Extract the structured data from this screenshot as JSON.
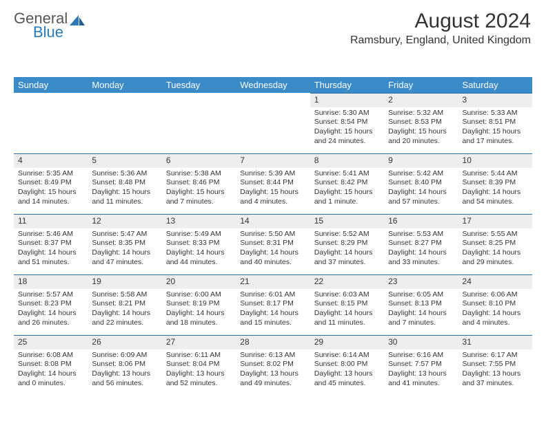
{
  "logo": {
    "text1": "General",
    "text2": "Blue"
  },
  "title": "August 2024",
  "location": "Ramsbury, England, United Kingdom",
  "daynames": [
    "Sunday",
    "Monday",
    "Tuesday",
    "Wednesday",
    "Thursday",
    "Friday",
    "Saturday"
  ],
  "colors": {
    "header_bg": "#3b8bc9",
    "header_text": "#ffffff",
    "daynum_bg": "#eeeeee",
    "daynum_border": "#2a6fa5",
    "text": "#333333",
    "logo_blue": "#2a7ab9"
  },
  "layout": {
    "start_day_index": 4,
    "weeks": 5,
    "rows": 5
  },
  "days": [
    {
      "n": "1",
      "sunrise": "5:30 AM",
      "sunset": "8:54 PM",
      "daylight": "15 hours and 24 minutes."
    },
    {
      "n": "2",
      "sunrise": "5:32 AM",
      "sunset": "8:53 PM",
      "daylight": "15 hours and 20 minutes."
    },
    {
      "n": "3",
      "sunrise": "5:33 AM",
      "sunset": "8:51 PM",
      "daylight": "15 hours and 17 minutes."
    },
    {
      "n": "4",
      "sunrise": "5:35 AM",
      "sunset": "8:49 PM",
      "daylight": "15 hours and 14 minutes."
    },
    {
      "n": "5",
      "sunrise": "5:36 AM",
      "sunset": "8:48 PM",
      "daylight": "15 hours and 11 minutes."
    },
    {
      "n": "6",
      "sunrise": "5:38 AM",
      "sunset": "8:46 PM",
      "daylight": "15 hours and 7 minutes."
    },
    {
      "n": "7",
      "sunrise": "5:39 AM",
      "sunset": "8:44 PM",
      "daylight": "15 hours and 4 minutes."
    },
    {
      "n": "8",
      "sunrise": "5:41 AM",
      "sunset": "8:42 PM",
      "daylight": "15 hours and 1 minute."
    },
    {
      "n": "9",
      "sunrise": "5:42 AM",
      "sunset": "8:40 PM",
      "daylight": "14 hours and 57 minutes."
    },
    {
      "n": "10",
      "sunrise": "5:44 AM",
      "sunset": "8:39 PM",
      "daylight": "14 hours and 54 minutes."
    },
    {
      "n": "11",
      "sunrise": "5:46 AM",
      "sunset": "8:37 PM",
      "daylight": "14 hours and 51 minutes."
    },
    {
      "n": "12",
      "sunrise": "5:47 AM",
      "sunset": "8:35 PM",
      "daylight": "14 hours and 47 minutes."
    },
    {
      "n": "13",
      "sunrise": "5:49 AM",
      "sunset": "8:33 PM",
      "daylight": "14 hours and 44 minutes."
    },
    {
      "n": "14",
      "sunrise": "5:50 AM",
      "sunset": "8:31 PM",
      "daylight": "14 hours and 40 minutes."
    },
    {
      "n": "15",
      "sunrise": "5:52 AM",
      "sunset": "8:29 PM",
      "daylight": "14 hours and 37 minutes."
    },
    {
      "n": "16",
      "sunrise": "5:53 AM",
      "sunset": "8:27 PM",
      "daylight": "14 hours and 33 minutes."
    },
    {
      "n": "17",
      "sunrise": "5:55 AM",
      "sunset": "8:25 PM",
      "daylight": "14 hours and 29 minutes."
    },
    {
      "n": "18",
      "sunrise": "5:57 AM",
      "sunset": "8:23 PM",
      "daylight": "14 hours and 26 minutes."
    },
    {
      "n": "19",
      "sunrise": "5:58 AM",
      "sunset": "8:21 PM",
      "daylight": "14 hours and 22 minutes."
    },
    {
      "n": "20",
      "sunrise": "6:00 AM",
      "sunset": "8:19 PM",
      "daylight": "14 hours and 18 minutes."
    },
    {
      "n": "21",
      "sunrise": "6:01 AM",
      "sunset": "8:17 PM",
      "daylight": "14 hours and 15 minutes."
    },
    {
      "n": "22",
      "sunrise": "6:03 AM",
      "sunset": "8:15 PM",
      "daylight": "14 hours and 11 minutes."
    },
    {
      "n": "23",
      "sunrise": "6:05 AM",
      "sunset": "8:13 PM",
      "daylight": "14 hours and 7 minutes."
    },
    {
      "n": "24",
      "sunrise": "6:06 AM",
      "sunset": "8:10 PM",
      "daylight": "14 hours and 4 minutes."
    },
    {
      "n": "25",
      "sunrise": "6:08 AM",
      "sunset": "8:08 PM",
      "daylight": "14 hours and 0 minutes."
    },
    {
      "n": "26",
      "sunrise": "6:09 AM",
      "sunset": "8:06 PM",
      "daylight": "13 hours and 56 minutes."
    },
    {
      "n": "27",
      "sunrise": "6:11 AM",
      "sunset": "8:04 PM",
      "daylight": "13 hours and 52 minutes."
    },
    {
      "n": "28",
      "sunrise": "6:13 AM",
      "sunset": "8:02 PM",
      "daylight": "13 hours and 49 minutes."
    },
    {
      "n": "29",
      "sunrise": "6:14 AM",
      "sunset": "8:00 PM",
      "daylight": "13 hours and 45 minutes."
    },
    {
      "n": "30",
      "sunrise": "6:16 AM",
      "sunset": "7:57 PM",
      "daylight": "13 hours and 41 minutes."
    },
    {
      "n": "31",
      "sunrise": "6:17 AM",
      "sunset": "7:55 PM",
      "daylight": "13 hours and 37 minutes."
    }
  ],
  "labels": {
    "sunrise": "Sunrise: ",
    "sunset": "Sunset: ",
    "daylight": "Daylight: "
  }
}
